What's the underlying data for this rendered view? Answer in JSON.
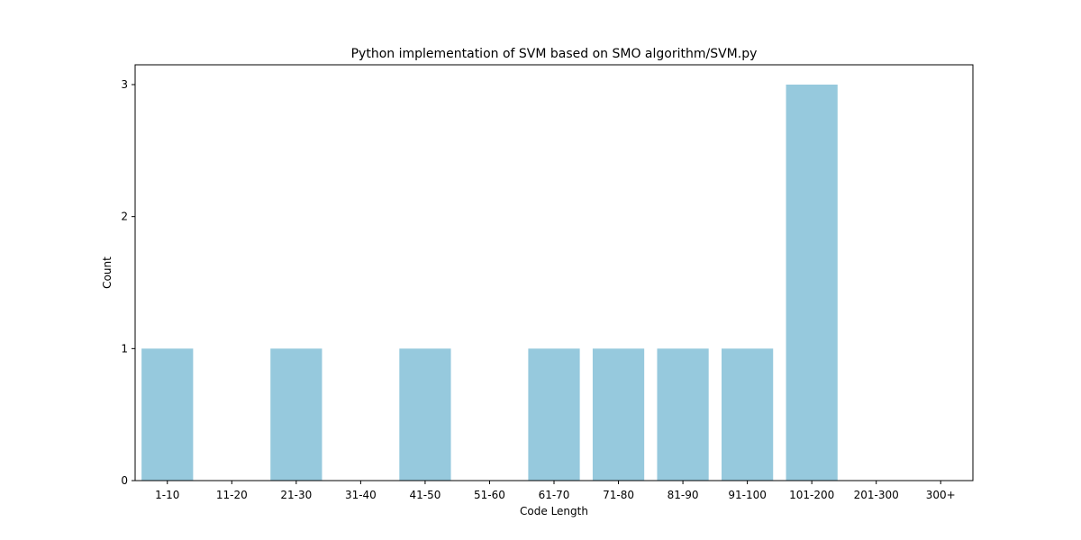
{
  "chart_data": {
    "type": "bar",
    "title": "Python implementation of SVM based on SMO algorithm/SVM.py",
    "xlabel": "Code Length",
    "ylabel": "Count",
    "categories": [
      "1-10",
      "11-20",
      "21-30",
      "31-40",
      "41-50",
      "51-60",
      "61-70",
      "71-80",
      "81-90",
      "91-100",
      "101-200",
      "201-300",
      "300+"
    ],
    "values": [
      1,
      0,
      1,
      0,
      1,
      0,
      1,
      1,
      1,
      1,
      3,
      0,
      0
    ],
    "yticks": [
      0,
      1,
      2,
      3
    ],
    "ylim": [
      0,
      3.15
    ],
    "bar_color": "#96c9dd",
    "grid": false,
    "legend": "none"
  }
}
